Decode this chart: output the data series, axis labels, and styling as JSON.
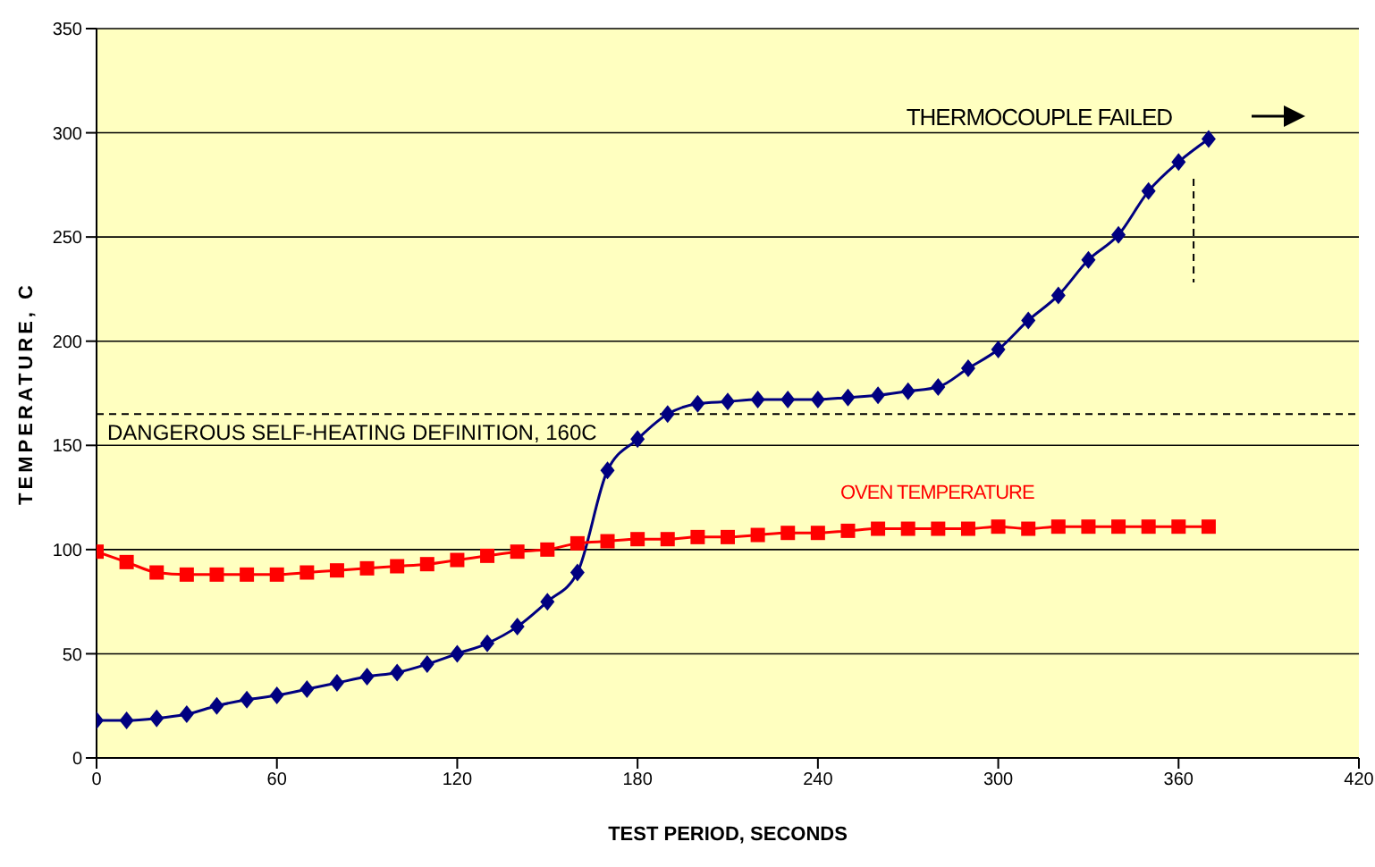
{
  "chart_data": {
    "type": "line",
    "xlabel": "TEST PERIOD, SECONDS",
    "ylabel": "TEMPERATURE, C",
    "x": [
      0,
      10,
      20,
      30,
      40,
      50,
      60,
      70,
      80,
      90,
      100,
      110,
      120,
      130,
      140,
      150,
      160,
      170,
      180,
      190,
      200,
      210,
      220,
      230,
      240,
      250,
      260,
      270,
      280,
      290,
      300,
      310,
      320,
      330,
      340,
      350,
      360,
      370
    ],
    "series": [
      {
        "color": "#000080",
        "marker": "diamond",
        "values": [
          18,
          18,
          19,
          21,
          25,
          28,
          30,
          33,
          36,
          39,
          41,
          45,
          50,
          55,
          63,
          75,
          89,
          138,
          153,
          165,
          170,
          171,
          172,
          172,
          172,
          173,
          174,
          176,
          178,
          187,
          196,
          210,
          222,
          239,
          251,
          272,
          286,
          297
        ]
      },
      {
        "name": "OVEN TEMPERATURE",
        "color": "#ff0000",
        "marker": "square",
        "values": [
          99,
          94,
          89,
          88,
          88,
          88,
          88,
          89,
          90,
          91,
          92,
          93,
          95,
          97,
          99,
          100,
          103,
          104,
          105,
          105,
          106,
          106,
          107,
          108,
          108,
          109,
          110,
          110,
          110,
          110,
          111,
          110,
          111,
          111,
          111,
          111,
          111,
          111
        ]
      }
    ],
    "xlim": [
      0,
      420
    ],
    "xticks": [
      0,
      60,
      120,
      180,
      240,
      300,
      360,
      420
    ],
    "ylim": [
      0,
      350
    ],
    "yticks": [
      0,
      50,
      100,
      150,
      200,
      250,
      300,
      350
    ],
    "grid": "y",
    "legend": false,
    "ref_lines": [
      {
        "axis": "y",
        "value": 165,
        "label": "DANGEROUS SELF-HEATING DEFINITION, 160C",
        "color": "#000000",
        "line_style": "dashed"
      },
      {
        "axis": "x",
        "value": 365,
        "label": "THERMOCOUPLE FAILED",
        "color": "#000000",
        "line_style": "dashed"
      }
    ]
  }
}
